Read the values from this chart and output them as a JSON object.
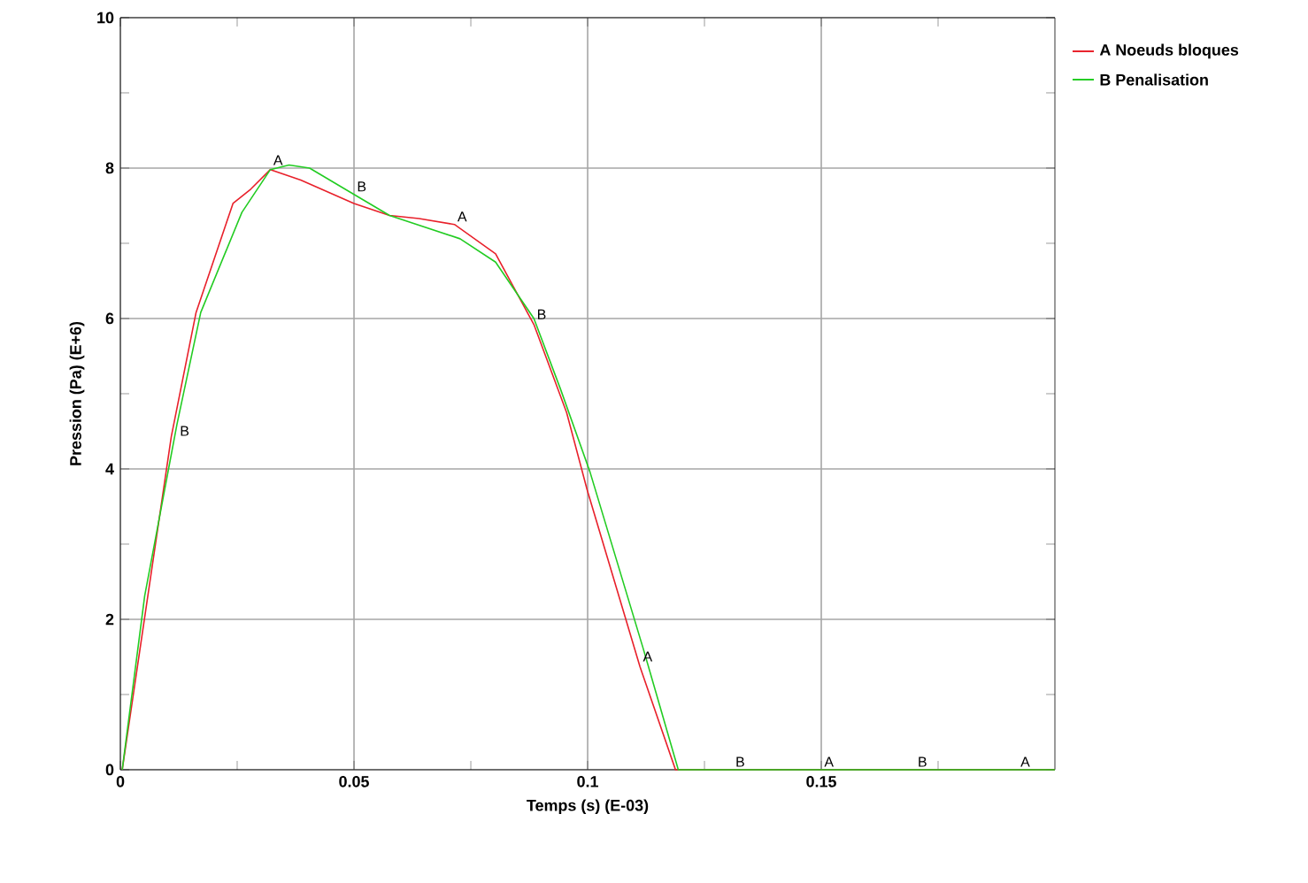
{
  "chart_data": {
    "type": "line",
    "xlabel": "Temps (s) (E-03)",
    "ylabel": "Pression (Pa) (E+6)",
    "xlim": [
      0,
      0.2
    ],
    "ylim": [
      0,
      10
    ],
    "xticks": [
      0,
      {
        "value": 0.025,
        "label": null
      },
      0.05,
      {
        "value": 0.075,
        "label": null
      },
      0.1,
      {
        "value": 0.125,
        "label": null
      },
      0.15,
      {
        "value": 0.175,
        "label": null
      }
    ],
    "yticks": [
      0,
      {
        "value": 1,
        "label": null
      },
      2,
      {
        "value": 3,
        "label": null
      },
      4,
      {
        "value": 5,
        "label": null
      },
      6,
      {
        "value": 7,
        "label": null
      },
      8,
      {
        "value": 9,
        "label": null
      },
      10
    ],
    "grid": true,
    "legend": "top right",
    "line_style": "solid",
    "series": [
      {
        "name": "A Noeuds bloques",
        "color": "#e8202a",
        "x": [
          0.0004,
          0.0109,
          0.0162,
          0.0241,
          0.0279,
          0.0321,
          0.0386,
          0.05,
          0.0576,
          0.0639,
          0.0715,
          0.0803,
          0.0885,
          0.0955,
          0.0999,
          0.1112,
          0.1188,
          0.2
        ],
        "values": [
          0,
          4.43,
          6.08,
          7.53,
          7.72,
          7.98,
          7.84,
          7.53,
          7.37,
          7.33,
          7.25,
          6.86,
          5.92,
          4.75,
          3.72,
          1.37,
          0,
          0
        ]
      },
      {
        "name": "B Penalisation",
        "color": "#22cc22",
        "x": [
          0.0004,
          0.0052,
          0.0121,
          0.0172,
          0.026,
          0.0321,
          0.0361,
          0.0405,
          0.05,
          0.0576,
          0.0727,
          0.0803,
          0.0885,
          0.0942,
          0.1005,
          0.1119,
          0.1194,
          0.2
        ],
        "values": [
          0,
          2.31,
          4.59,
          6.08,
          7.41,
          7.98,
          8.04,
          8.0,
          7.65,
          7.37,
          7.06,
          6.75,
          6.0,
          5.06,
          3.96,
          1.61,
          0,
          0
        ]
      }
    ],
    "annotations": [
      {
        "text": "A",
        "x": 0.0321,
        "y": 8.0
      },
      {
        "text": "B",
        "x": 0.0121,
        "y": 4.4
      },
      {
        "text": "B",
        "x": 0.05,
        "y": 7.65
      },
      {
        "text": "A",
        "x": 0.0715,
        "y": 7.25
      },
      {
        "text": "B",
        "x": 0.0885,
        "y": 5.95
      },
      {
        "text": "A",
        "x": 0.1112,
        "y": 1.4
      },
      {
        "text": "B",
        "x": 0.131,
        "y": 0
      },
      {
        "text": "A",
        "x": 0.15,
        "y": 0
      },
      {
        "text": "B",
        "x": 0.17,
        "y": 0
      },
      {
        "text": "A",
        "x": 0.192,
        "y": 0
      }
    ]
  }
}
